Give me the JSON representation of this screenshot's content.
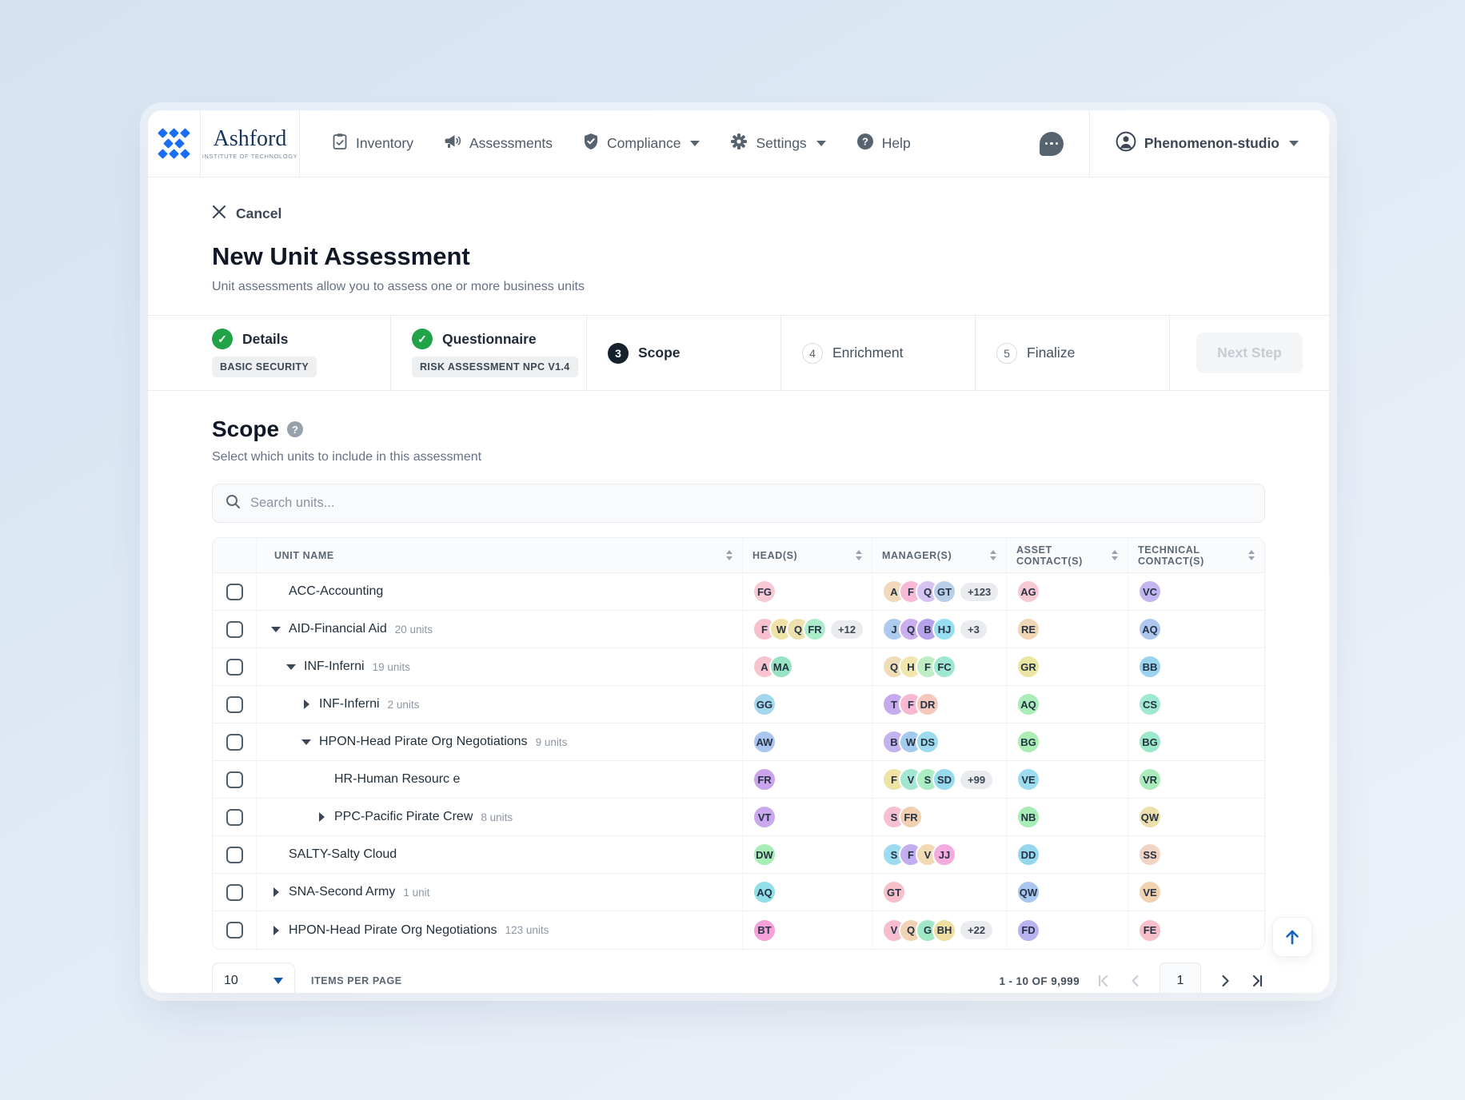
{
  "nav": {
    "brand": {
      "name": "Ashford",
      "tagline": "INSTITUTE OF TECHNOLOGY"
    },
    "items": [
      {
        "label": "Inventory",
        "icon": "clipboard-check-icon",
        "caret": false
      },
      {
        "label": "Assessments",
        "icon": "megaphone-icon",
        "caret": false
      },
      {
        "label": "Compliance",
        "icon": "shield-check-icon",
        "caret": true
      },
      {
        "label": "Settings",
        "icon": "gear-icon",
        "caret": true
      },
      {
        "label": "Help",
        "icon": "question-circle-icon",
        "caret": false
      }
    ],
    "account": {
      "label": "Phenomenon-studio"
    }
  },
  "header": {
    "cancel_label": "Cancel",
    "title": "New Unit Assessment",
    "subtitle": "Unit assessments allow you to assess one or more business units"
  },
  "steps": {
    "items": [
      {
        "number": "1",
        "label": "Details",
        "state": "complete",
        "badge": "BASIC SECURITY"
      },
      {
        "number": "2",
        "label": "Questionnaire",
        "state": "complete",
        "badge": "RISK ASSESSMENT NPC V1.4"
      },
      {
        "number": "3",
        "label": "Scope",
        "state": "current"
      },
      {
        "number": "4",
        "label": "Enrichment",
        "state": "upcoming"
      },
      {
        "number": "5",
        "label": "Finalize",
        "state": "upcoming"
      }
    ],
    "next_button": "Next Step"
  },
  "scope": {
    "title": "Scope",
    "subtitle": "Select which units to include in this assessment",
    "search_placeholder": "Search units..."
  },
  "table": {
    "columns": [
      "UNIT NAME",
      "HEAD(S)",
      "MANAGER(S)",
      "ASSET CONTACT(S)",
      "TECHNICAL CONTACT(S)"
    ],
    "rows": [
      {
        "name": "ACC-Accounting",
        "count": "",
        "caret": null,
        "level": 0,
        "heads": [
          {
            "t": "FG",
            "c": "#f7c9d4"
          }
        ],
        "managers": [
          {
            "t": "A",
            "c": "#f2d9bb"
          },
          {
            "t": "F",
            "c": "#f6b9d6"
          },
          {
            "t": "Q",
            "c": "#d5c3f2"
          },
          {
            "t": "GT",
            "c": "#b9cfe9"
          }
        ],
        "managers_more": "+123",
        "asset": [
          {
            "t": "AG",
            "c": "#f7c9d4"
          }
        ],
        "tech": [
          {
            "t": "VC",
            "c": "#c3b6f0"
          }
        ]
      },
      {
        "name": "AID-Financial Aid",
        "count": "20 units",
        "caret": "down",
        "level": 0,
        "heads": [
          {
            "t": "F",
            "c": "#f7c0cf"
          },
          {
            "t": "W",
            "c": "#f0e2a6"
          },
          {
            "t": "Q",
            "c": "#efe0b0"
          },
          {
            "t": "FR",
            "c": "#abeccb"
          }
        ],
        "heads_more": "+12",
        "managers": [
          {
            "t": "J",
            "c": "#aecbee"
          },
          {
            "t": "Q",
            "c": "#cbaeee"
          },
          {
            "t": "B",
            "c": "#b6a2ea"
          },
          {
            "t": "HJ",
            "c": "#97dff0"
          }
        ],
        "managers_more": "+3",
        "asset": [
          {
            "t": "RE",
            "c": "#f1d6b6"
          }
        ],
        "tech": [
          {
            "t": "AQ",
            "c": "#aec7ee"
          }
        ]
      },
      {
        "name": "INF-Inferni",
        "count": "19 units",
        "caret": "down",
        "level": 1,
        "heads": [
          {
            "t": "A",
            "c": "#f7c4cf"
          },
          {
            "t": "MA",
            "c": "#98e3c3"
          }
        ],
        "managers": [
          {
            "t": "Q",
            "c": "#f0dcb6"
          },
          {
            "t": "H",
            "c": "#f0e6ae"
          },
          {
            "t": "F",
            "c": "#c0eec4"
          },
          {
            "t": "FC",
            "c": "#9fe7d0"
          }
        ],
        "asset": [
          {
            "t": "GR",
            "c": "#ece5a2"
          }
        ],
        "tech": [
          {
            "t": "BB",
            "c": "#9bd3ee"
          }
        ]
      },
      {
        "name": "INF-Inferni",
        "count": "2 units",
        "caret": "right",
        "level": 2,
        "heads": [
          {
            "t": "GG",
            "c": "#a4d7ee"
          }
        ],
        "managers": [
          {
            "t": "T",
            "c": "#c6aaee"
          },
          {
            "t": "F",
            "c": "#f6b9d2"
          },
          {
            "t": "DR",
            "c": "#f4c9bc"
          }
        ],
        "asset": [
          {
            "t": "AQ",
            "c": "#abedba"
          }
        ],
        "tech": [
          {
            "t": "CS",
            "c": "#9fe9d2"
          }
        ]
      },
      {
        "name": "HPON-Head Pirate Org Negotiations",
        "count": "9 units",
        "caret": "down",
        "level": 2,
        "heads": [
          {
            "t": "AW",
            "c": "#abc6ee"
          }
        ],
        "managers": [
          {
            "t": "B",
            "c": "#c2b2ee"
          },
          {
            "t": "W",
            "c": "#a4caee"
          },
          {
            "t": "DS",
            "c": "#9cdcee"
          }
        ],
        "asset": [
          {
            "t": "BG",
            "c": "#abedb4"
          }
        ],
        "tech": [
          {
            "t": "BG",
            "c": "#9ce9c9"
          }
        ]
      },
      {
        "name": "HR-Human Resourc e",
        "count": "",
        "caret": null,
        "level": 3,
        "heads": [
          {
            "t": "FR",
            "c": "#c9a4ea"
          }
        ],
        "managers": [
          {
            "t": "F",
            "c": "#eee2a4"
          },
          {
            "t": "V",
            "c": "#a4e6d2"
          },
          {
            "t": "S",
            "c": "#abeec2"
          },
          {
            "t": "SD",
            "c": "#97daee"
          }
        ],
        "managers_more": "+99",
        "asset": [
          {
            "t": "VE",
            "c": "#9cdcee"
          }
        ],
        "tech": [
          {
            "t": "VR",
            "c": "#abedba"
          }
        ]
      },
      {
        "name": "PPC-Pacific Pirate Crew",
        "count": "8 units",
        "caret": "right",
        "level": 3,
        "heads": [
          {
            "t": "VT",
            "c": "#c9a8ee"
          }
        ],
        "managers": [
          {
            "t": "S",
            "c": "#f7bfd2"
          },
          {
            "t": "FR",
            "c": "#f1d0b2"
          }
        ],
        "asset": [
          {
            "t": "NB",
            "c": "#a6edb8"
          }
        ],
        "tech": [
          {
            "t": "QW",
            "c": "#eddfab"
          }
        ]
      },
      {
        "name": "SALTY-Salty Cloud",
        "count": "",
        "caret": null,
        "level": 0,
        "heads": [
          {
            "t": "DW",
            "c": "#a8edb6"
          }
        ],
        "managers": [
          {
            "t": "S",
            "c": "#9cdcee"
          },
          {
            "t": "F",
            "c": "#c2aeee"
          },
          {
            "t": "V",
            "c": "#f1dab4"
          },
          {
            "t": "JJ",
            "c": "#f5abdd"
          }
        ],
        "asset": [
          {
            "t": "DD",
            "c": "#97d7ee"
          }
        ],
        "tech": [
          {
            "t": "SS",
            "c": "#f1d4c4"
          }
        ]
      },
      {
        "name": "SNA-Second Army",
        "count": "1 unit",
        "caret": "right",
        "level": 0,
        "heads": [
          {
            "t": "AQ",
            "c": "#90dfe9"
          }
        ],
        "managers": [
          {
            "t": "GT",
            "c": "#f7bfca"
          }
        ],
        "asset": [
          {
            "t": "QW",
            "c": "#a8c6ee"
          }
        ],
        "tech": [
          {
            "t": "VE",
            "c": "#f1d2ae"
          }
        ]
      },
      {
        "name": "HPON-Head Pirate Org Negotiations",
        "count": "123 units",
        "caret": "right",
        "level": 0,
        "heads": [
          {
            "t": "BT",
            "c": "#f5a0d6"
          }
        ],
        "managers": [
          {
            "t": "V",
            "c": "#f7bcce"
          },
          {
            "t": "Q",
            "c": "#f1d2b2"
          },
          {
            "t": "G",
            "c": "#a0e7c6"
          },
          {
            "t": "BH",
            "c": "#eedfa0"
          }
        ],
        "managers_more": "+22",
        "asset": [
          {
            "t": "FD",
            "c": "#bab2ee"
          }
        ],
        "tech": [
          {
            "t": "FE",
            "c": "#f7bfca"
          }
        ]
      }
    ]
  },
  "pagination": {
    "page_size": "10",
    "items_per_page_label": "ITEMS PER PAGE",
    "range_label": "1 - 10 OF 9,999",
    "page": "1"
  }
}
